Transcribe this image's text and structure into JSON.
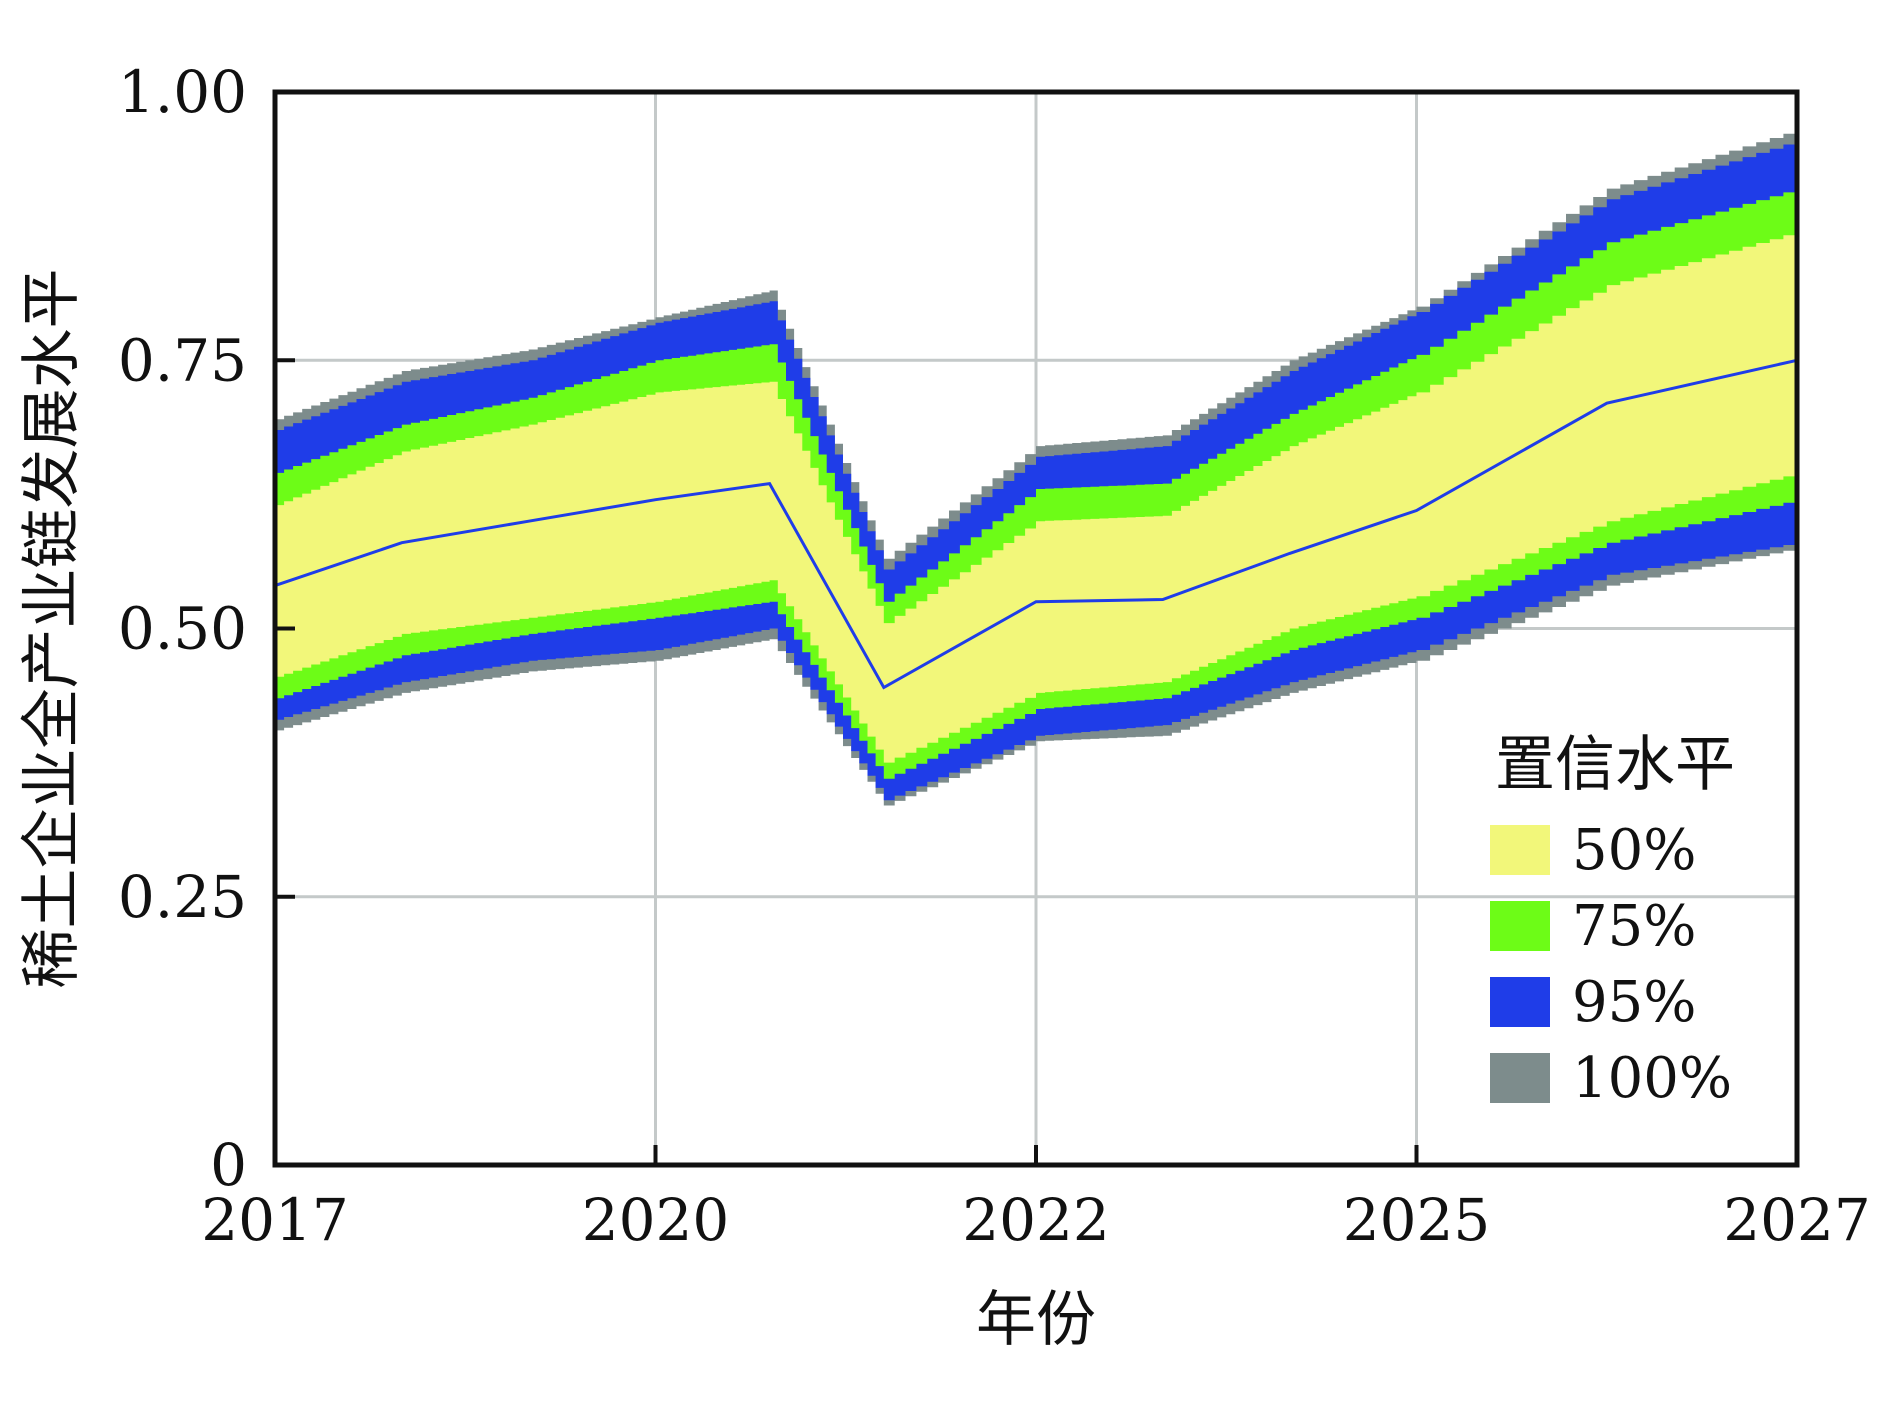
{
  "chart_data": {
    "type": "area",
    "title": "",
    "xlabel": "年份",
    "ylabel": "稀土企业全产业链发展水平",
    "xlim": [
      2017,
      2027
    ],
    "ylim": [
      0,
      1
    ],
    "x_ticks": [
      2017,
      2020,
      2022,
      2025,
      2027
    ],
    "x_tick_labels": [
      "2017",
      "2020",
      "2022",
      "2025",
      "2027"
    ],
    "y_ticks": [
      0,
      0.25,
      0.5,
      0.75,
      1.0
    ],
    "y_tick_labels": [
      "0",
      "0.25",
      "0.50",
      "0.75",
      "1.00"
    ],
    "x_positions": [
      2017,
      2018,
      2019,
      2020,
      2020.6,
      2021.2,
      2022,
      2023,
      2024,
      2025,
      2026,
      2027
    ],
    "median": [
      0.54,
      0.58,
      0.6,
      0.62,
      0.635,
      0.445,
      0.525,
      0.527,
      0.57,
      0.61,
      0.71,
      0.75
    ],
    "bands": [
      {
        "name": "100%",
        "color": "#7d8c8c",
        "upper": [
          0.695,
          0.74,
          0.76,
          0.79,
          0.815,
          0.565,
          0.67,
          0.68,
          0.75,
          0.8,
          0.91,
          0.965
        ],
        "lower": [
          0.405,
          0.44,
          0.46,
          0.47,
          0.49,
          0.335,
          0.395,
          0.4,
          0.44,
          0.47,
          0.54,
          0.575
        ]
      },
      {
        "name": "95%",
        "color": "#1f3de8",
        "upper": [
          0.685,
          0.73,
          0.75,
          0.785,
          0.805,
          0.555,
          0.66,
          0.67,
          0.74,
          0.795,
          0.9,
          0.955
        ],
        "lower": [
          0.415,
          0.45,
          0.47,
          0.48,
          0.5,
          0.34,
          0.4,
          0.41,
          0.45,
          0.48,
          0.55,
          0.58
        ]
      },
      {
        "name": "75%",
        "color": "#6dfc17",
        "upper": [
          0.645,
          0.69,
          0.715,
          0.75,
          0.765,
          0.525,
          0.63,
          0.635,
          0.7,
          0.755,
          0.86,
          0.91
        ],
        "lower": [
          0.435,
          0.475,
          0.495,
          0.51,
          0.525,
          0.36,
          0.425,
          0.435,
          0.48,
          0.51,
          0.58,
          0.62
        ]
      },
      {
        "name": "50%",
        "color": "#f2f77a",
        "upper": [
          0.615,
          0.665,
          0.69,
          0.72,
          0.73,
          0.505,
          0.6,
          0.605,
          0.67,
          0.72,
          0.82,
          0.87
        ],
        "lower": [
          0.455,
          0.495,
          0.51,
          0.525,
          0.545,
          0.375,
          0.44,
          0.45,
          0.5,
          0.53,
          0.6,
          0.645
        ]
      }
    ],
    "median_color": "#1f3de8",
    "legend": {
      "title": "置信水平",
      "placement": "lower-right",
      "entries": [
        {
          "label": "50%",
          "color": "#f2f77a"
        },
        {
          "label": "75%",
          "color": "#6dfc17"
        },
        {
          "label": "95%",
          "color": "#1f3de8"
        },
        {
          "label": "100%",
          "color": "#7d8c8c"
        }
      ]
    },
    "grid": true
  }
}
